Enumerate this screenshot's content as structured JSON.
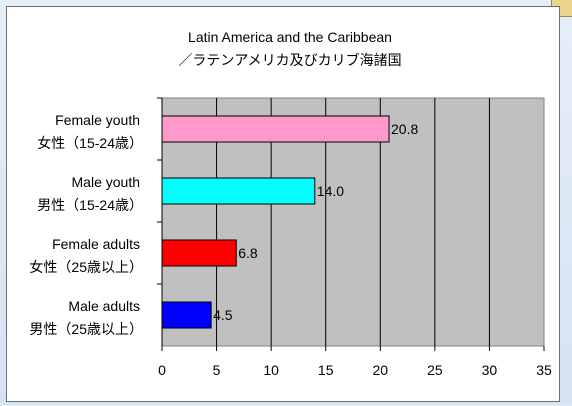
{
  "chart_data": {
    "type": "bar",
    "orientation": "horizontal",
    "title": "Latin America and the Caribbean",
    "subtitle": "／ラテンアメリカ及びカリブ海諸国",
    "categories": [
      {
        "en": "Female youth",
        "ja": "女性（15-24歳）"
      },
      {
        "en": "Male youth",
        "ja": "男性（15-24歳）"
      },
      {
        "en": "Female adults",
        "ja": "女性（25歳以上）"
      },
      {
        "en": "Male adults",
        "ja": "男性（25歳以上）"
      }
    ],
    "values": [
      20.8,
      14.0,
      6.8,
      4.5
    ],
    "value_labels": [
      "20.8",
      "14.0",
      "6.8",
      "4.5"
    ],
    "bar_colors": [
      "#ff99cc",
      "#00ffff",
      "#ff0000",
      "#0000ff"
    ],
    "xlim": [
      0,
      35
    ],
    "xticks": [
      "0",
      "5",
      "10",
      "15",
      "20",
      "25",
      "30",
      "35"
    ],
    "grid": true,
    "plot_background": "#c0c0c0"
  }
}
